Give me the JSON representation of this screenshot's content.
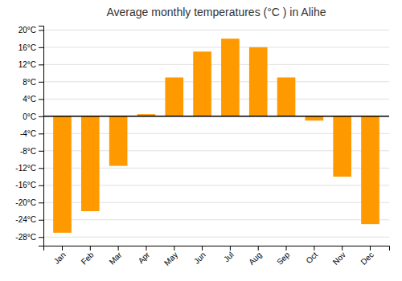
{
  "chart_data": {
    "type": "bar",
    "title": "Average monthly temperatures (°C ) in Alihe",
    "categories": [
      "Jan",
      "Feb",
      "Mar",
      "Apr",
      "May",
      "Jun",
      "Jul",
      "Aug",
      "Sep",
      "Oct",
      "Nov",
      "Dec"
    ],
    "values": [
      -27,
      -22,
      -11.5,
      0.5,
      9,
      15,
      18,
      16,
      9,
      -1,
      -14,
      -25
    ],
    "color": "#FF9900",
    "ylim": [
      -30,
      21
    ],
    "yticks": [
      {
        "value": -28,
        "label": "-28°C"
      },
      {
        "value": -24,
        "label": "-24°C"
      },
      {
        "value": -20,
        "label": "-20°C"
      },
      {
        "value": -16,
        "label": "-16°C"
      },
      {
        "value": -12,
        "label": "-12°C"
      },
      {
        "value": -8,
        "label": "-8°C"
      },
      {
        "value": -4,
        "label": "-4°C"
      },
      {
        "value": 0,
        "label": "0°C"
      },
      {
        "value": 4,
        "label": "4°C"
      },
      {
        "value": 8,
        "label": "8°C"
      },
      {
        "value": 12,
        "label": "12°C"
      },
      {
        "value": 16,
        "label": "16°C"
      },
      {
        "value": 20,
        "label": "20°C"
      }
    ],
    "grid": true
  }
}
